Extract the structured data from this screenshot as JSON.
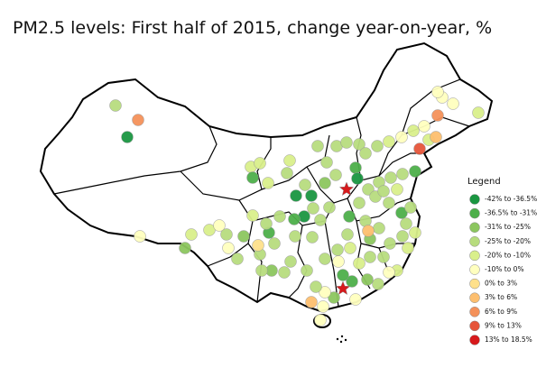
{
  "header": {
    "title": "PM2.5 levels: First half of 2015, change year-on-year, %"
  },
  "legend": {
    "title": "Legend",
    "items": [
      {
        "label": "-42% to -36.5%",
        "color": "#1a9641"
      },
      {
        "label": "-36.5% to -31%",
        "color": "#4daf4a"
      },
      {
        "label": "-31% to -25%",
        "color": "#8cc65f"
      },
      {
        "label": "-25% to -20%",
        "color": "#b7dc7e"
      },
      {
        "label": "-20% to -10%",
        "color": "#d9ef8b"
      },
      {
        "label": "-10% to 0%",
        "color": "#ffffbf"
      },
      {
        "label": "0% to 3%",
        "color": "#fee08b"
      },
      {
        "label": "3% to 6%",
        "color": "#fdbf6f"
      },
      {
        "label": "6% to 9%",
        "color": "#f4915a"
      },
      {
        "label": "9% to 13%",
        "color": "#e6553a"
      },
      {
        "label": "13% to 18.5%",
        "color": "#d7191c"
      }
    ]
  }
}
